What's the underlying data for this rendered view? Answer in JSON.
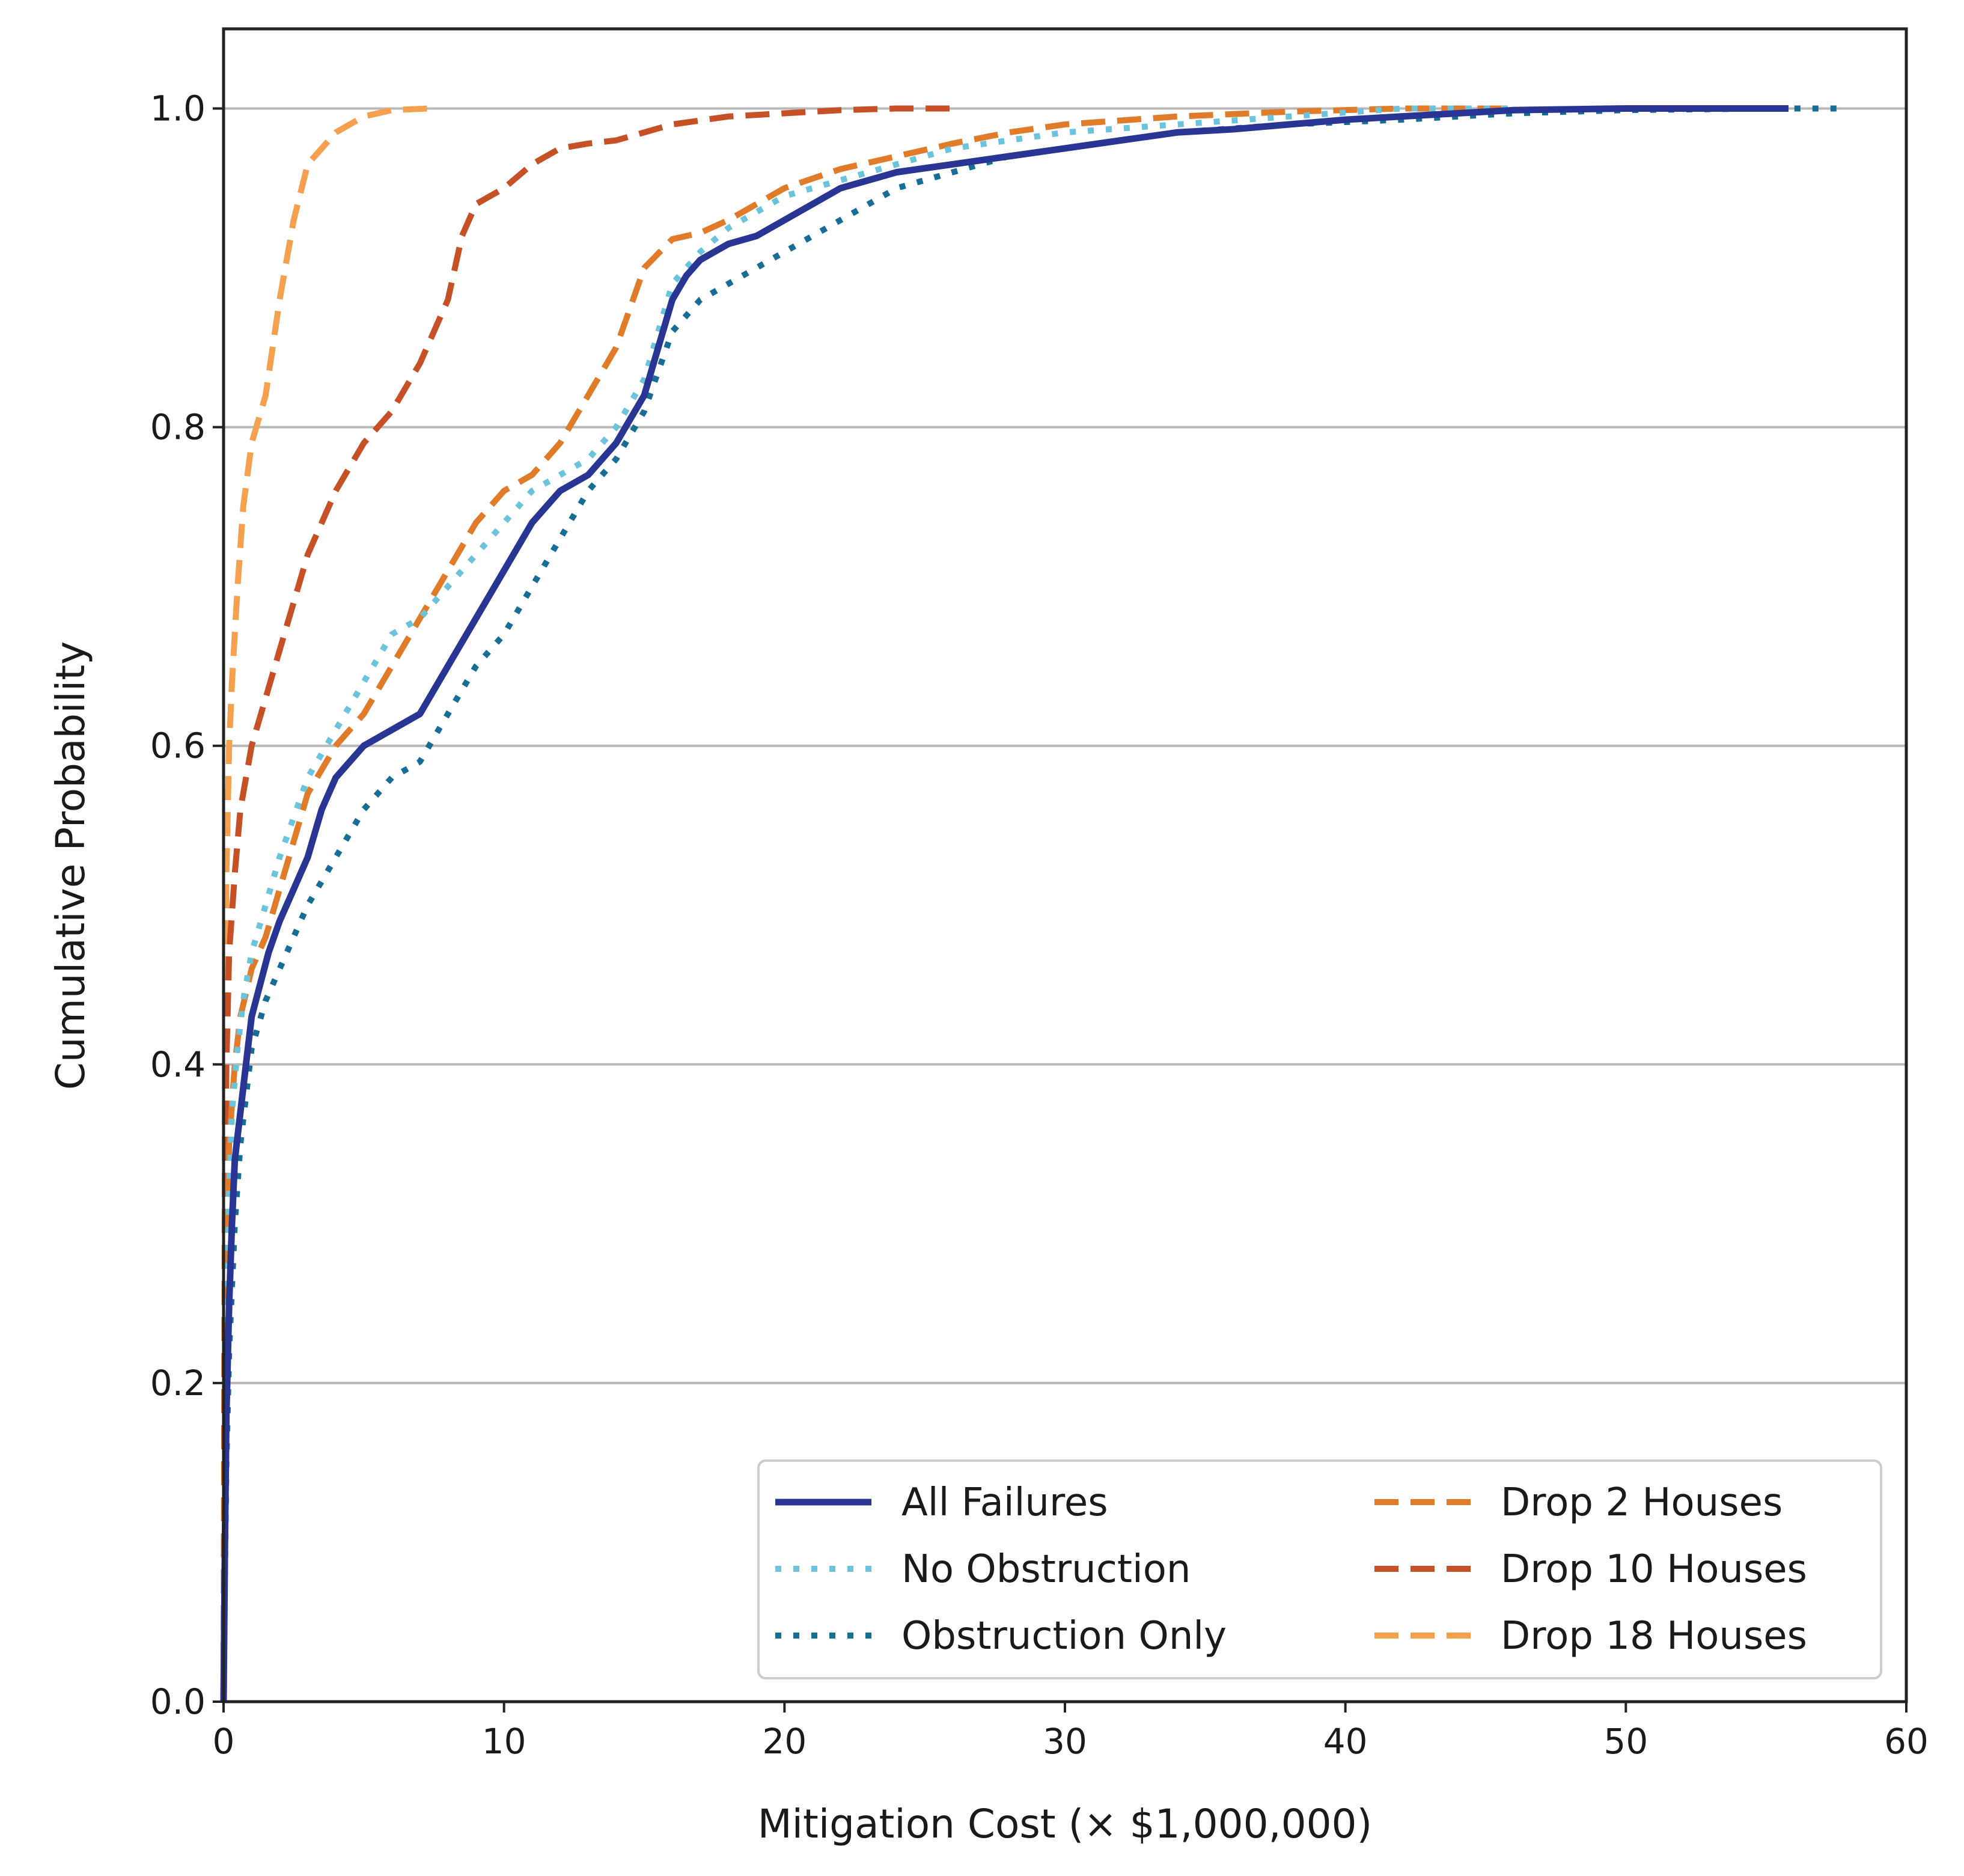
{
  "chart_data": {
    "type": "line",
    "title": "",
    "xlabel": "Mitigation Cost (× $1,000,000)",
    "ylabel": "Cumulative Probability",
    "xlim": [
      0,
      60
    ],
    "ylim": [
      0,
      1.05
    ],
    "xticks": [
      0,
      10,
      20,
      30,
      40,
      50,
      60
    ],
    "xtick_labels": [
      "0",
      "10",
      "20",
      "30",
      "40",
      "50",
      "60"
    ],
    "yticks": [
      0.0,
      0.2,
      0.4,
      0.6,
      0.8,
      1.0
    ],
    "ytick_labels": [
      "0.0",
      "0.2",
      "0.4",
      "0.6",
      "0.8",
      "1.0"
    ],
    "grid": "horizontal",
    "legend_position": "lower-right",
    "series": [
      {
        "name": "All Failures",
        "color": "#283593",
        "style": "solid",
        "x": [
          0,
          0.05,
          0.1,
          0.2,
          0.3,
          0.4,
          0.6,
          0.8,
          1.0,
          1.3,
          1.6,
          2.0,
          2.5,
          3.0,
          3.5,
          4.0,
          5.0,
          6.0,
          7.0,
          8.0,
          9.0,
          10.0,
          11.0,
          12.0,
          13.0,
          14.0,
          15.0,
          15.5,
          16.0,
          16.5,
          17.0,
          18.0,
          19.0,
          20.0,
          21.0,
          22.0,
          23.0,
          24.0,
          26.0,
          28.0,
          30.0,
          32.0,
          34.0,
          36.0,
          38.0,
          40.0,
          42.0,
          44.0,
          46.0,
          50.0,
          55.8
        ],
        "y": [
          0,
          0.1,
          0.18,
          0.25,
          0.3,
          0.34,
          0.37,
          0.4,
          0.43,
          0.45,
          0.47,
          0.49,
          0.51,
          0.53,
          0.56,
          0.58,
          0.6,
          0.61,
          0.62,
          0.65,
          0.68,
          0.71,
          0.74,
          0.76,
          0.77,
          0.79,
          0.82,
          0.85,
          0.88,
          0.895,
          0.905,
          0.915,
          0.92,
          0.93,
          0.94,
          0.95,
          0.955,
          0.96,
          0.965,
          0.97,
          0.975,
          0.98,
          0.985,
          0.987,
          0.99,
          0.993,
          0.995,
          0.997,
          0.999,
          1.0,
          1.0
        ]
      },
      {
        "name": "No Obstruction",
        "color": "#6cc4dc",
        "style": "dotted",
        "x": [
          0,
          0.05,
          0.1,
          0.2,
          0.3,
          0.5,
          0.7,
          1.0,
          1.5,
          2.0,
          3.0,
          4.0,
          5.0,
          6.0,
          7.0,
          8.0,
          9.0,
          10.0,
          11.0,
          12.0,
          13.0,
          14.0,
          15.0,
          16.0,
          17.0,
          18.0,
          19.0,
          20.0,
          22.0,
          24.0,
          26.0,
          28.0,
          30.0,
          34.0,
          38.0,
          42.0,
          46.0
        ],
        "y": [
          0,
          0.15,
          0.25,
          0.32,
          0.37,
          0.41,
          0.44,
          0.47,
          0.5,
          0.53,
          0.58,
          0.61,
          0.64,
          0.67,
          0.68,
          0.7,
          0.72,
          0.74,
          0.76,
          0.77,
          0.78,
          0.8,
          0.83,
          0.89,
          0.91,
          0.925,
          0.935,
          0.945,
          0.955,
          0.965,
          0.975,
          0.98,
          0.985,
          0.99,
          0.995,
          1.0,
          1.0
        ]
      },
      {
        "name": "Obstruction Only",
        "color": "#176d96",
        "style": "dotted",
        "x": [
          0,
          0.05,
          0.1,
          0.2,
          0.4,
          0.6,
          0.8,
          1.0,
          1.5,
          2.0,
          3.0,
          4.0,
          5.0,
          6.0,
          7.0,
          8.0,
          9.0,
          10.0,
          11.0,
          12.0,
          13.0,
          14.0,
          15.0,
          16.0,
          16.5,
          17.0,
          18.0,
          19.0,
          20.0,
          22.0,
          24.0,
          26.0,
          28.0,
          30.0,
          34.0,
          38.0,
          42.0,
          46.0,
          50.0,
          55.0,
          57.6
        ],
        "y": [
          0,
          0.08,
          0.15,
          0.22,
          0.3,
          0.35,
          0.38,
          0.41,
          0.44,
          0.46,
          0.5,
          0.53,
          0.56,
          0.58,
          0.59,
          0.62,
          0.65,
          0.67,
          0.7,
          0.73,
          0.76,
          0.78,
          0.81,
          0.86,
          0.87,
          0.88,
          0.89,
          0.9,
          0.91,
          0.93,
          0.95,
          0.96,
          0.97,
          0.975,
          0.985,
          0.99,
          0.993,
          0.997,
          0.999,
          1.0,
          1.0
        ]
      },
      {
        "name": "Drop 2 Houses",
        "color": "#e07b2a",
        "style": "dashed",
        "x": [
          0,
          0.05,
          0.1,
          0.2,
          0.4,
          0.6,
          1.0,
          1.5,
          2.0,
          2.5,
          3.0,
          4.0,
          5.0,
          6.0,
          7.0,
          8.0,
          9.0,
          10.0,
          11.0,
          12.0,
          13.0,
          14.0,
          15.0,
          16.0,
          17.0,
          18.0,
          19.0,
          20.0,
          22.0,
          24.0,
          26.0,
          28.0,
          30.0,
          34.0,
          38.0,
          42.0,
          46.0
        ],
        "y": [
          0,
          0.2,
          0.28,
          0.35,
          0.4,
          0.43,
          0.46,
          0.48,
          0.51,
          0.54,
          0.57,
          0.6,
          0.62,
          0.65,
          0.68,
          0.71,
          0.74,
          0.76,
          0.77,
          0.79,
          0.82,
          0.85,
          0.9,
          0.918,
          0.922,
          0.93,
          0.94,
          0.95,
          0.962,
          0.97,
          0.978,
          0.985,
          0.99,
          0.995,
          0.998,
          1.0,
          1.0
        ]
      },
      {
        "name": "Drop 10 Houses",
        "color": "#c75126",
        "style": "dashed",
        "x": [
          0,
          0.05,
          0.1,
          0.2,
          0.4,
          0.6,
          1.0,
          1.5,
          2.0,
          3.0,
          4.0,
          5.0,
          6.0,
          7.0,
          8.0,
          8.5,
          9.0,
          10.0,
          11.0,
          12.0,
          13.0,
          14.0,
          16.0,
          18.0,
          20.0,
          22.0,
          24.0,
          26.0
        ],
        "y": [
          0,
          0.3,
          0.4,
          0.47,
          0.52,
          0.56,
          0.6,
          0.63,
          0.66,
          0.72,
          0.76,
          0.79,
          0.81,
          0.84,
          0.88,
          0.92,
          0.94,
          0.95,
          0.965,
          0.975,
          0.978,
          0.98,
          0.99,
          0.995,
          0.997,
          0.999,
          1.0,
          1.0
        ]
      },
      {
        "name": "Drop 18 Houses",
        "color": "#f5a04f",
        "style": "dashed",
        "x": [
          0,
          0.05,
          0.1,
          0.2,
          0.3,
          0.5,
          0.7,
          1.0,
          1.5,
          2.0,
          2.5,
          3.0,
          4.0,
          5.0,
          6.0,
          7.3
        ],
        "y": [
          0,
          0.4,
          0.52,
          0.6,
          0.64,
          0.7,
          0.75,
          0.79,
          0.82,
          0.88,
          0.93,
          0.965,
          0.985,
          0.995,
          0.999,
          1.0
        ]
      }
    ]
  }
}
